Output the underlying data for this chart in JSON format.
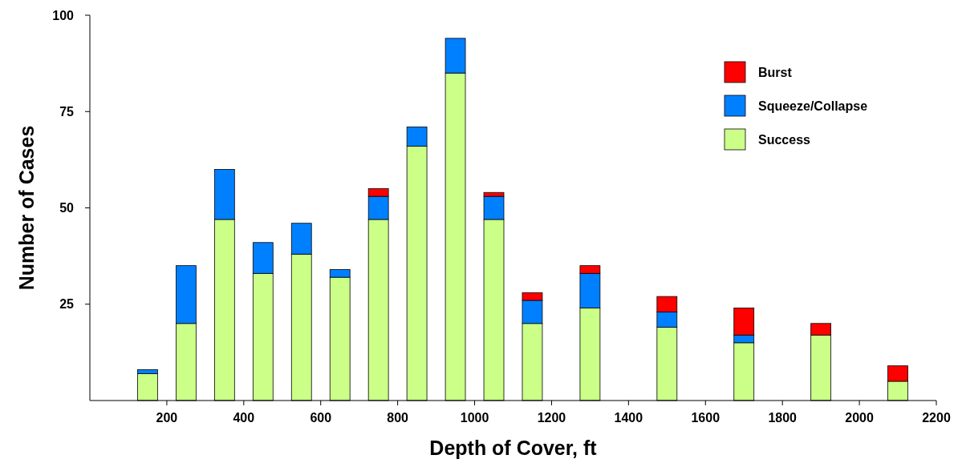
{
  "chart_data": {
    "type": "bar",
    "stacked": true,
    "xlabel": "Depth of Cover, ft",
    "ylabel": "Number of Cases",
    "x": [
      150,
      250,
      350,
      450,
      550,
      650,
      750,
      850,
      950,
      1050,
      1150,
      1300,
      1500,
      1700,
      1900,
      2100
    ],
    "series": [
      {
        "name": "Success",
        "color": "#ccff88",
        "values": [
          7,
          20,
          47,
          33,
          38,
          32,
          47,
          66,
          85,
          47,
          20,
          24,
          19,
          15,
          17,
          5
        ]
      },
      {
        "name": "Squeeze/Collapse",
        "color": "#0080ff",
        "values": [
          1,
          15,
          13,
          8,
          8,
          2,
          6,
          5,
          9,
          6,
          6,
          9,
          4,
          2,
          0,
          0
        ]
      },
      {
        "name": "Burst",
        "color": "#ff0000",
        "values": [
          0,
          0,
          0,
          0,
          0,
          0,
          2,
          0,
          0,
          1,
          2,
          2,
          4,
          7,
          3,
          4
        ]
      }
    ],
    "xlim": [
      0,
      2200
    ],
    "xticks": [
      200,
      400,
      600,
      800,
      1000,
      1200,
      1400,
      1600,
      1800,
      2000,
      2200
    ],
    "ylim": [
      0,
      100
    ],
    "yticks": [
      25,
      50,
      75,
      100
    ],
    "legend": "top right",
    "grid": false
  }
}
